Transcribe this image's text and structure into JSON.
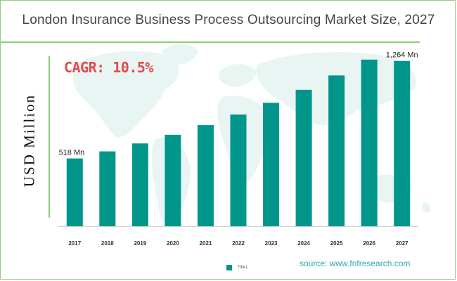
{
  "title": "London Insurance Business Process Outsourcing Market Size, 2027",
  "cagr": "CAGR: 10.5%",
  "source": "source: www.fnfresearch.com",
  "colors": {
    "bar": "#00968b",
    "accent_green": "#8fce7a",
    "cagr": "#e34a4a"
  },
  "chart_data": {
    "type": "bar",
    "categories": [
      "2017",
      "2018",
      "2019",
      "2020",
      "2021",
      "2022",
      "2023",
      "2024",
      "2025",
      "2026",
      "2027"
    ],
    "series": [
      {
        "name": "Title1",
        "values": [
          518,
          572,
          633,
          699,
          773,
          854,
          944,
          1043,
          1153,
          1274,
          1264
        ]
      }
    ],
    "ylabel": "USD Million",
    "xlabel": "",
    "ylim": [
      0,
      1300
    ],
    "data_labels": [
      {
        "category": "2017",
        "text": "518 Mn"
      },
      {
        "category": "2027",
        "text": "1,264 Mn"
      }
    ],
    "grid": false,
    "legend": "bottom"
  }
}
